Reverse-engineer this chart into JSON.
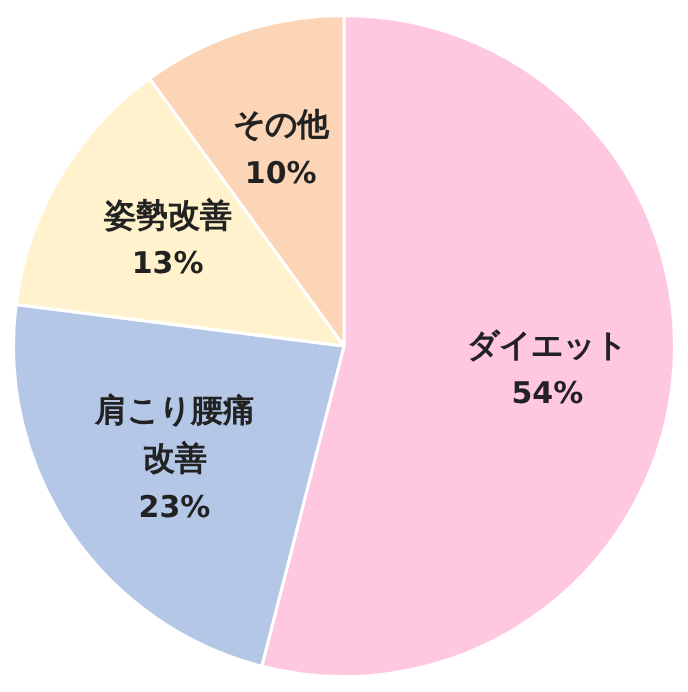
{
  "chart_data": {
    "type": "pie",
    "categories": [
      "ダイエット",
      "肩こり腰痛改善",
      "姿勢改善",
      "その他"
    ],
    "values": [
      54,
      23,
      13,
      10
    ],
    "value_labels": [
      "54%",
      "23%",
      "13%",
      "10%"
    ],
    "colors": [
      "#ffc7e0",
      "#b4c7e7",
      "#fff2cc",
      "#fbd5b5"
    ]
  }
}
